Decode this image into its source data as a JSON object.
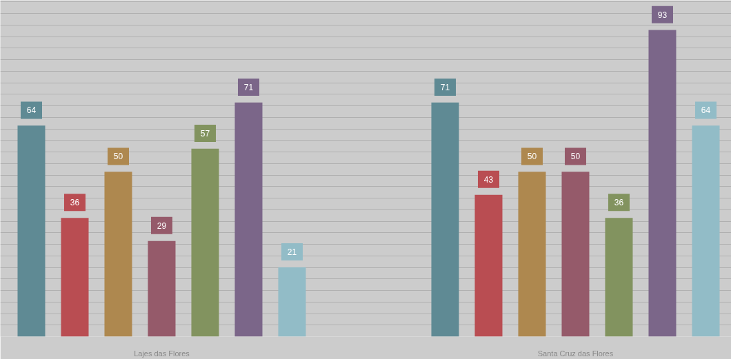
{
  "chart_data": {
    "type": "bar",
    "categories": [
      "Lajes das Flores",
      "Santa Cruz das Flores"
    ],
    "series": [
      {
        "color": "#5f8a94",
        "values": [
          64,
          71
        ]
      },
      {
        "color": "#b94d52",
        "values": [
          36,
          43
        ]
      },
      {
        "color": "#ae884f",
        "values": [
          50,
          50
        ]
      },
      {
        "color": "#955a6a",
        "values": [
          29,
          50
        ]
      },
      {
        "color": "#82935f",
        "values": [
          57,
          36
        ]
      },
      {
        "color": "#7b6689",
        "values": [
          71,
          93
        ]
      },
      {
        "color": "#92bcc7",
        "values": [
          21,
          64
        ]
      }
    ],
    "ylim": [
      0,
      102
    ],
    "yticks": [
      {
        "value": 0,
        "label": null
      },
      {
        "value": 3.5,
        "label": null
      },
      {
        "value": 7,
        "label": null
      },
      {
        "value": 10.5,
        "label": null
      },
      {
        "value": 14,
        "label": null
      },
      {
        "value": 17.5,
        "label": null
      },
      {
        "value": 21,
        "label": null
      },
      {
        "value": 24.5,
        "label": null
      },
      {
        "value": 28,
        "label": null
      },
      {
        "value": 31.5,
        "label": null
      },
      {
        "value": 35,
        "label": null
      },
      {
        "value": 38.5,
        "label": null
      },
      {
        "value": 42,
        "label": null
      },
      {
        "value": 45.5,
        "label": null
      },
      {
        "value": 49,
        "label": null
      },
      {
        "value": 52.5,
        "label": null
      },
      {
        "value": 56,
        "label": null
      },
      {
        "value": 59.5,
        "label": null
      },
      {
        "value": 63,
        "label": null
      },
      {
        "value": 66.5,
        "label": null
      },
      {
        "value": 70,
        "label": null
      },
      {
        "value": 73.5,
        "label": null
      },
      {
        "value": 77,
        "label": null
      },
      {
        "value": 80.5,
        "label": null
      },
      {
        "value": 84,
        "label": null
      },
      {
        "value": 87.5,
        "label": null
      },
      {
        "value": 91,
        "label": null
      },
      {
        "value": 94.5,
        "label": null
      },
      {
        "value": 98,
        "label": null
      },
      {
        "value": 101.5,
        "label": null
      }
    ],
    "tick_labels": "x",
    "grid": "y",
    "data_labels": true
  }
}
